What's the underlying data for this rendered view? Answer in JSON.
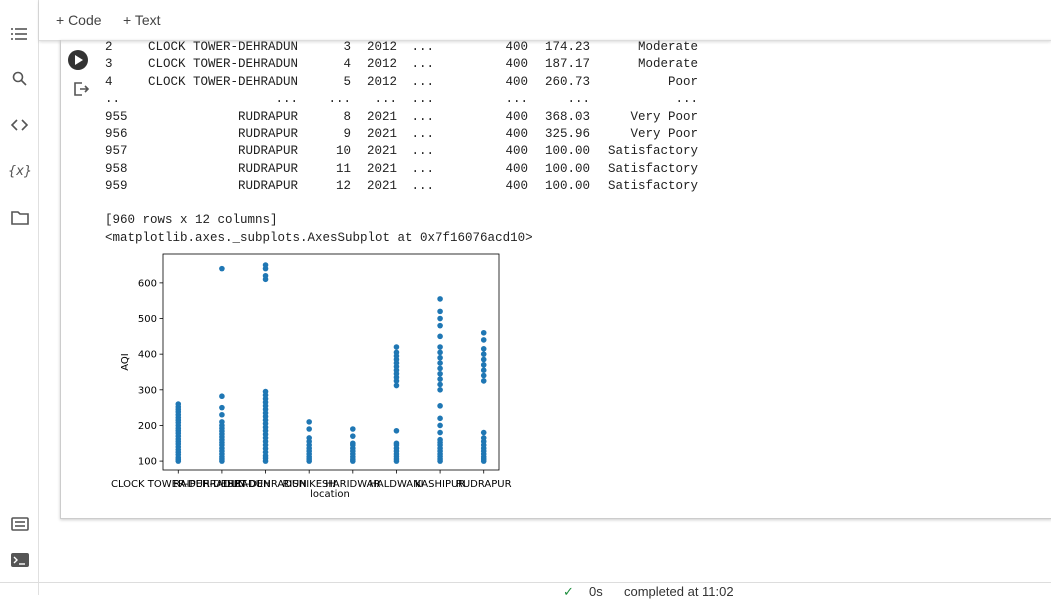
{
  "toolbar": {
    "code_button": "+ Code",
    "text_button": "+ Text"
  },
  "output": {
    "rows": [
      [
        "2",
        "CLOCK TOWER-DEHRADUN",
        "3",
        "2012",
        "...",
        "400",
        "174.23",
        "Moderate"
      ],
      [
        "3",
        "CLOCK TOWER-DEHRADUN",
        "4",
        "2012",
        "...",
        "400",
        "187.17",
        "Moderate"
      ],
      [
        "4",
        "CLOCK TOWER-DEHRADUN",
        "5",
        "2012",
        "...",
        "400",
        "260.73",
        "Poor"
      ],
      [
        "..",
        "...",
        "...",
        "...",
        "...",
        "...",
        "...",
        "..."
      ],
      [
        "955",
        "RUDRAPUR",
        "8",
        "2021",
        "...",
        "400",
        "368.03",
        "Very Poor"
      ],
      [
        "956",
        "RUDRAPUR",
        "9",
        "2021",
        "...",
        "400",
        "325.96",
        "Very Poor"
      ],
      [
        "957",
        "RUDRAPUR",
        "10",
        "2021",
        "...",
        "400",
        "100.00",
        "Satisfactory"
      ],
      [
        "958",
        "RUDRAPUR",
        "11",
        "2021",
        "...",
        "400",
        "100.00",
        "Satisfactory"
      ],
      [
        "959",
        "RUDRAPUR",
        "12",
        "2021",
        "...",
        "400",
        "100.00",
        "Satisfactory"
      ]
    ],
    "shape_line": "[960 rows x 12 columns]",
    "repr_line": "<matplotlib.axes._subplots.AxesSubplot at 0x7f16076acd10>"
  },
  "chart_data": {
    "type": "scatter",
    "x_label": "location",
    "y_label": "AQI",
    "color": "#1f77b4",
    "categories": [
      "CLOCK TOWER-DEHRADUN",
      "RAIPUR-DEHRADUN",
      "ISBT-DEHRADUN",
      "RISHIKESH",
      "HARIDWAR",
      "HALDWANI",
      "KASHIPUR",
      "RUDRAPUR"
    ],
    "values": [
      [
        100,
        105,
        110,
        118,
        125,
        132,
        140,
        148,
        155,
        162,
        170,
        178,
        185,
        192,
        200,
        208,
        215,
        222,
        230,
        238,
        245,
        252,
        260
      ],
      [
        100,
        106,
        112,
        120,
        128,
        136,
        145,
        152,
        160,
        168,
        176,
        184,
        192,
        200,
        210,
        230,
        250,
        282,
        640
      ],
      [
        100,
        108,
        115,
        125,
        135,
        145,
        155,
        165,
        175,
        185,
        195,
        205,
        215,
        225,
        235,
        245,
        255,
        265,
        275,
        285,
        295,
        610,
        620,
        640,
        650
      ],
      [
        100,
        106,
        112,
        120,
        128,
        136,
        145,
        155,
        165,
        190,
        210
      ],
      [
        100,
        105,
        112,
        120,
        128,
        136,
        145,
        150,
        170,
        190
      ],
      [
        100,
        106,
        113,
        120,
        128,
        136,
        145,
        150,
        185,
        312,
        325,
        335,
        345,
        355,
        365,
        375,
        385,
        395,
        405,
        420
      ],
      [
        100,
        106,
        113,
        120,
        128,
        136,
        145,
        152,
        160,
        180,
        200,
        220,
        255,
        300,
        315,
        330,
        345,
        360,
        375,
        390,
        405,
        420,
        450,
        480,
        500,
        520,
        555
      ],
      [
        100,
        106,
        112,
        120,
        128,
        136,
        145,
        155,
        165,
        180,
        325,
        340,
        355,
        370,
        385,
        400,
        415,
        440,
        460
      ]
    ],
    "ylim": [
      75,
      681
    ],
    "yticks": [
      100,
      200,
      300,
      400,
      500,
      600
    ]
  },
  "footer": {
    "duration": "0s",
    "status": "completed at 11:02"
  }
}
